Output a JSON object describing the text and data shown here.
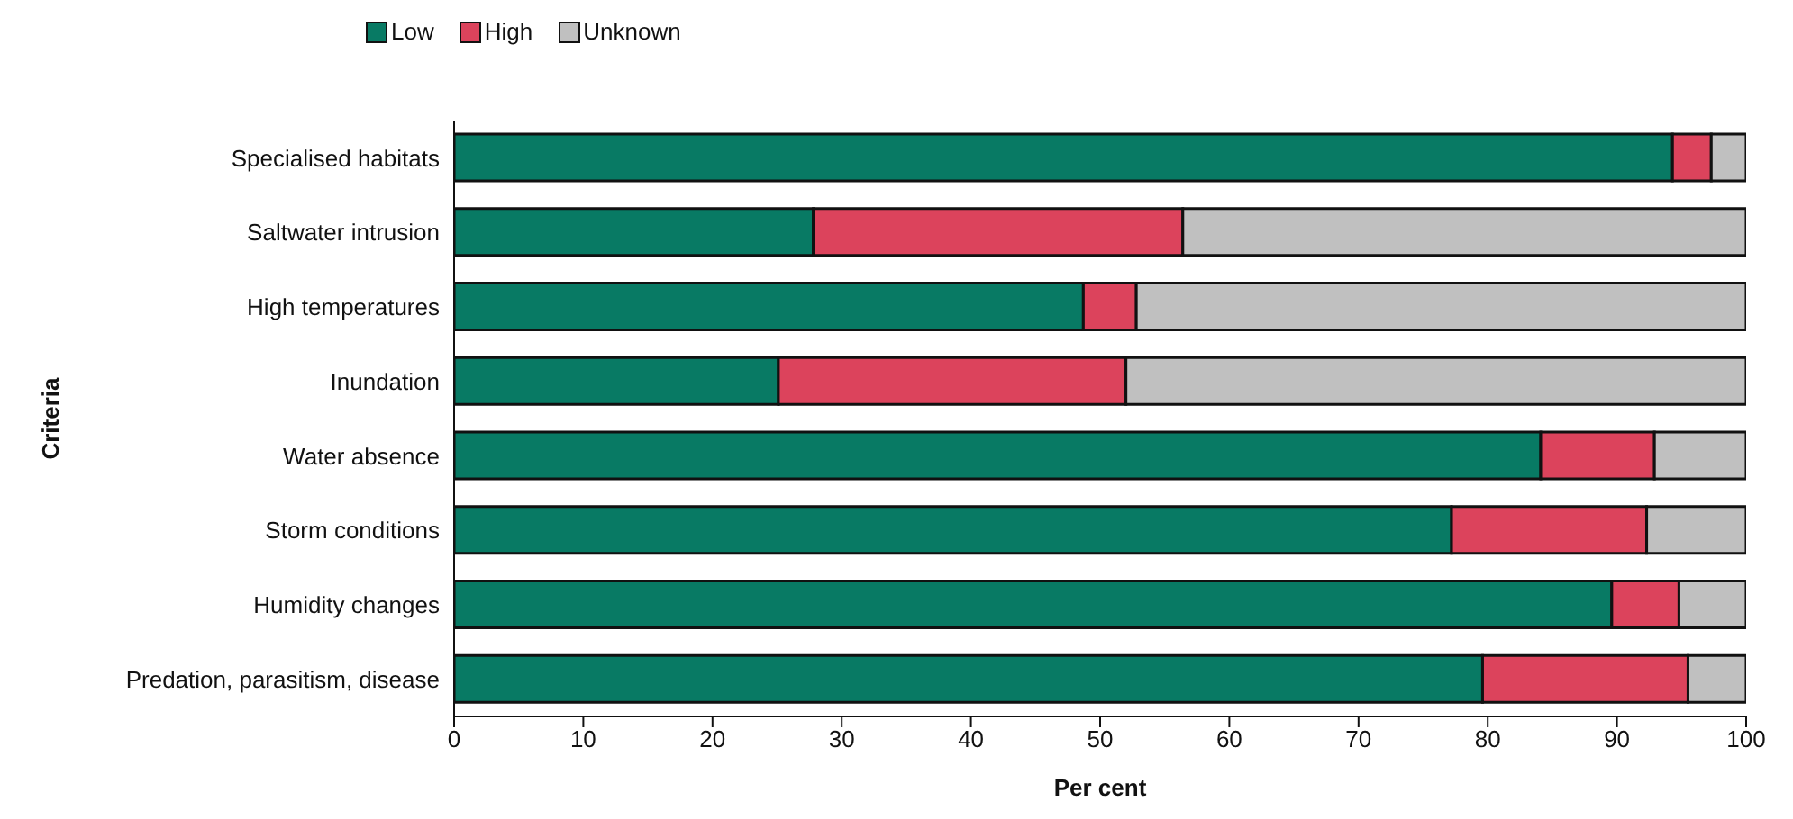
{
  "chart_data": {
    "type": "bar",
    "orientation": "horizontal",
    "stacked": true,
    "xlabel": "Per cent",
    "ylabel": "Criteria",
    "categories": [
      "Specialised habitats",
      "Saltwater intrusion",
      "High temperatures",
      "Inundation",
      "Water absence",
      "Storm conditions",
      "Humidity changes",
      "Predation, parasitism, disease"
    ],
    "series": [
      {
        "name": "Low",
        "color": "#087a64",
        "values": [
          94.3,
          27.8,
          48.7,
          25.1,
          84.1,
          77.2,
          89.6,
          79.6
        ]
      },
      {
        "name": "High",
        "color": "#dc435c",
        "values": [
          3.0,
          28.6,
          4.1,
          26.9,
          8.8,
          15.1,
          5.2,
          15.9
        ]
      },
      {
        "name": "Unknown",
        "color": "#c0c0c0",
        "values": [
          2.7,
          43.6,
          47.2,
          48.0,
          7.1,
          7.7,
          5.2,
          4.5
        ]
      }
    ],
    "xlim": [
      0,
      100
    ],
    "xticks": [
      0,
      10,
      20,
      30,
      40,
      50,
      60,
      70,
      80,
      90,
      100
    ],
    "grid": false,
    "legend": "top left"
  }
}
